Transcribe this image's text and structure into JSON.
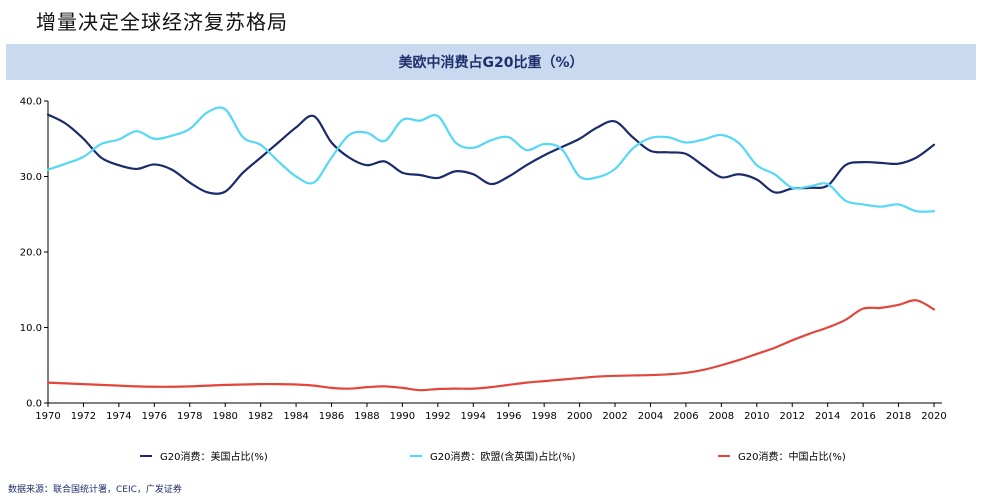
{
  "page": {
    "title": "增量决定全球经济复苏格局",
    "source": "数据来源：联合国统计署，CEIC，广发证券"
  },
  "chart_data": {
    "type": "line",
    "title": "美欧中消费占G20比重（%）",
    "xlabel": "",
    "ylabel": "",
    "ylim": [
      0,
      40
    ],
    "yticks": [
      "0.0",
      "10.0",
      "20.0",
      "30.0",
      "40.0"
    ],
    "xlim": [
      1970,
      2020
    ],
    "xticks": [
      "1970",
      "1972",
      "1974",
      "1976",
      "1978",
      "1980",
      "1982",
      "1984",
      "1986",
      "1988",
      "1990",
      "1992",
      "1994",
      "1996",
      "1998",
      "2000",
      "2002",
      "2004",
      "2006",
      "2008",
      "2010",
      "2012",
      "2014",
      "2016",
      "2018",
      "2020"
    ],
    "x": [
      1970,
      1971,
      1972,
      1973,
      1974,
      1975,
      1976,
      1977,
      1978,
      1979,
      1980,
      1981,
      1982,
      1983,
      1984,
      1985,
      1986,
      1987,
      1988,
      1989,
      1990,
      1991,
      1992,
      1993,
      1994,
      1995,
      1996,
      1997,
      1998,
      1999,
      2000,
      2001,
      2002,
      2003,
      2004,
      2005,
      2006,
      2007,
      2008,
      2009,
      2010,
      2011,
      2012,
      2013,
      2014,
      2015,
      2016,
      2017,
      2018,
      2019,
      2020
    ],
    "legend_position": "bottom",
    "series": [
      {
        "name": "G20消费：美国占比(%)",
        "color": "#1b2a6b",
        "values": [
          38.2,
          37.0,
          35.0,
          32.5,
          31.5,
          31.0,
          31.6,
          30.9,
          29.2,
          27.9,
          28.0,
          30.5,
          32.5,
          34.5,
          36.5,
          38.0,
          34.5,
          32.5,
          31.5,
          32.0,
          30.5,
          30.2,
          29.8,
          30.7,
          30.3,
          29.0,
          30.0,
          31.5,
          32.8,
          33.9,
          35.0,
          36.5,
          37.3,
          35.2,
          33.4,
          33.2,
          33.0,
          31.4,
          29.9,
          30.3,
          29.6,
          27.9,
          28.4,
          28.5,
          28.8,
          31.5,
          31.9,
          31.8,
          31.7,
          32.5,
          34.2
        ]
      },
      {
        "name": "G20消费：欧盟(含英国)占比(%)",
        "color": "#55d8f5",
        "values": [
          30.9,
          31.7,
          32.6,
          34.3,
          34.9,
          36.0,
          35.0,
          35.4,
          36.3,
          38.5,
          38.9,
          35.2,
          34.2,
          32.0,
          30.0,
          29.2,
          32.5,
          35.5,
          35.8,
          34.7,
          37.5,
          37.4,
          38.0,
          34.5,
          33.8,
          34.8,
          35.2,
          33.5,
          34.3,
          33.6,
          30.0,
          29.9,
          31.0,
          33.7,
          35.1,
          35.2,
          34.5,
          34.9,
          35.5,
          34.4,
          31.5,
          30.3,
          28.5,
          28.7,
          29.0,
          26.8,
          26.3,
          26.0,
          26.3,
          25.4,
          25.4
        ]
      },
      {
        "name": "G20消费：中国占比(%)",
        "color": "#e2463a",
        "values": [
          2.7,
          2.6,
          2.5,
          2.4,
          2.3,
          2.2,
          2.15,
          2.15,
          2.2,
          2.3,
          2.4,
          2.45,
          2.5,
          2.5,
          2.45,
          2.3,
          2.0,
          1.9,
          2.1,
          2.2,
          2.0,
          1.7,
          1.85,
          1.9,
          1.9,
          2.1,
          2.4,
          2.7,
          2.9,
          3.1,
          3.3,
          3.5,
          3.6,
          3.65,
          3.7,
          3.8,
          4.0,
          4.4,
          5.0,
          5.7,
          6.5,
          7.3,
          8.3,
          9.2,
          10.0,
          11.0,
          12.5,
          12.6,
          13.0,
          13.6,
          12.4
        ]
      }
    ]
  }
}
